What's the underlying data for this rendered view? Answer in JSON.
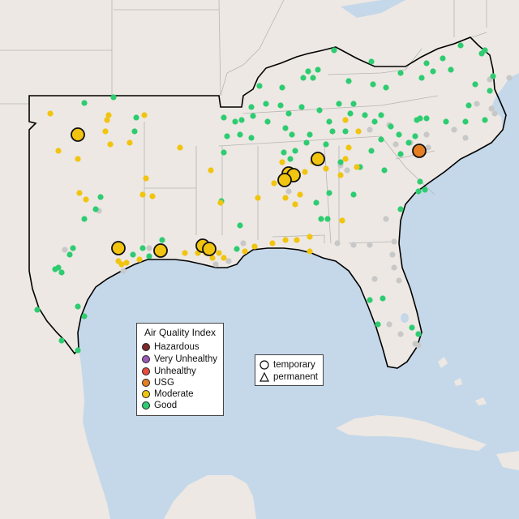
{
  "legend": {
    "title": "Air Quality Index",
    "categories": [
      {
        "label": "Hazardous",
        "color": "#7e2a28"
      },
      {
        "label": "Very Unhealthy",
        "color": "#9b59b6"
      },
      {
        "label": "Unhealthy",
        "color": "#e74c3c"
      },
      {
        "label": "USG",
        "color": "#e67e22"
      },
      {
        "label": "Moderate",
        "color": "#f1c40f"
      },
      {
        "label": "Good",
        "color": "#2ecc71"
      }
    ]
  },
  "site_types": {
    "temporary": "temporary",
    "permanent": "permanent"
  },
  "colors": {
    "water": "#c5d8e9",
    "land": "#ede8e3",
    "no_data_marker": "#c8c8c8",
    "region_outline": "#000000",
    "state_lines": "#b5b5b5"
  }
}
